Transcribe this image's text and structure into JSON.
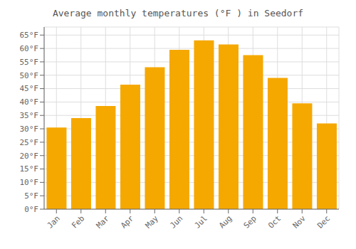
{
  "chart_data": {
    "type": "bar",
    "title": "Average monthly temperatures (°F ) in Seedorf",
    "categories": [
      "Jan",
      "Feb",
      "Mar",
      "Apr",
      "May",
      "Jun",
      "Jul",
      "Aug",
      "Sep",
      "Oct",
      "Nov",
      "Dec"
    ],
    "values": [
      30.5,
      34.0,
      38.5,
      46.5,
      53.0,
      59.5,
      63.0,
      61.5,
      57.5,
      49.0,
      39.5,
      32.0
    ],
    "color": "#F5A800",
    "ylim": [
      0,
      68
    ],
    "yticks": [
      {
        "value": 0,
        "label": "0°F"
      },
      {
        "value": 5,
        "label": "5°F"
      },
      {
        "value": 10,
        "label": "10°F"
      },
      {
        "value": 15,
        "label": "15°F"
      },
      {
        "value": 20,
        "label": "20°F"
      },
      {
        "value": 25,
        "label": "25°F"
      },
      {
        "value": 30,
        "label": "30°F"
      },
      {
        "value": 35,
        "label": "35°F"
      },
      {
        "value": 40,
        "label": "40°F"
      },
      {
        "value": 45,
        "label": "45°F"
      },
      {
        "value": 50,
        "label": "50°F"
      },
      {
        "value": 55,
        "label": "55°F"
      },
      {
        "value": 60,
        "label": "60°F"
      },
      {
        "value": 65,
        "label": "65°F"
      }
    ],
    "grid": true
  }
}
